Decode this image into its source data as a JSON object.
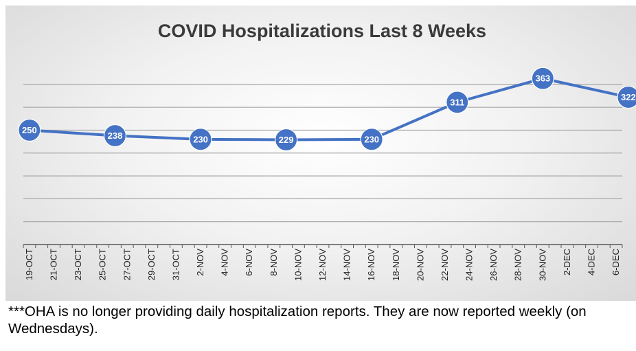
{
  "chart_data": {
    "type": "line",
    "title": "COVID Hospitalizations Last 8 Weeks",
    "xlabel": "",
    "ylabel": "",
    "ylim": [
      0,
      400
    ],
    "grid": true,
    "categories": [
      "19-OCT",
      "21-OCT",
      "23-OCT",
      "25-OCT",
      "27-OCT",
      "29-OCT",
      "31-OCT",
      "2-NOV",
      "4-NOV",
      "6-NOV",
      "8-NOV",
      "10-NOV",
      "12-NOV",
      "14-NOV",
      "16-NOV",
      "18-NOV",
      "20-NOV",
      "22-NOV",
      "24-NOV",
      "26-NOV",
      "28-NOV",
      "30-NOV",
      "2-DEC",
      "4-DEC",
      "6-DEC"
    ],
    "series": [
      {
        "name": "Hospitalizations",
        "color": "#4472c4",
        "points": [
          {
            "date": "19-OCT",
            "value": 250
          },
          {
            "date": "26-OCT",
            "value": 238
          },
          {
            "date": "2-NOV",
            "value": 230
          },
          {
            "date": "9-NOV",
            "value": 229
          },
          {
            "date": "16-NOV",
            "value": 230
          },
          {
            "date": "23-NOV",
            "value": 311
          },
          {
            "date": "30-NOV",
            "value": 363
          },
          {
            "date": "7-DEC",
            "value": 322
          }
        ]
      }
    ],
    "point_day_offsets": [
      0,
      7,
      14,
      21,
      28,
      35,
      42,
      49
    ]
  },
  "footnote": "***OHA is no longer providing daily hospitalization reports.  They are now reported weekly (on Wednesdays)."
}
